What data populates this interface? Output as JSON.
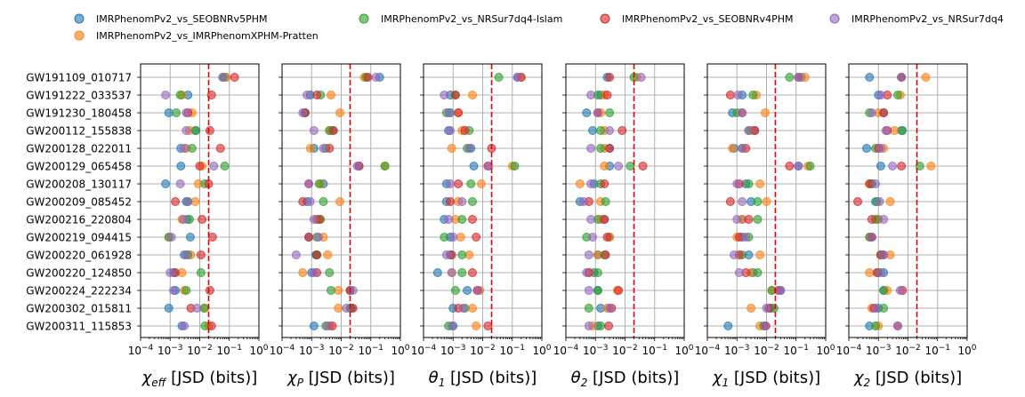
{
  "legend": {
    "placement": "top",
    "entries": [
      {
        "name": "IMRPhenomPv2_vs_SEOBNRv5PHM",
        "color": "#1f77b4"
      },
      {
        "name": "IMRPhenomPv2_vs_IMRPhenomXPHM-Pratten",
        "color": "#ff7f0e"
      },
      {
        "name": "IMRPhenomPv2_vs_NRSur7dq4-Islam",
        "color": "#2ca02c"
      },
      {
        "name": "IMRPhenomPv2_vs_SEOBNRv4PHM",
        "color": "#d62728"
      },
      {
        "name": "IMRPhenomPv2_vs_NRSur7dq4",
        "color": "#9467bd"
      }
    ]
  },
  "chart_data": {
    "type": "scatter",
    "x_scale": "log",
    "xlim": [
      0.0001,
      1
    ],
    "x_tick_labels": [
      "10^-4",
      "10^-3",
      "10^-2",
      "10^-1",
      "10^0"
    ],
    "threshold_line": 0.02,
    "threshold_color": "#e60000",
    "grid": true,
    "categories": [
      "GW191109_010717",
      "GW191222_033537",
      "GW191230_180458",
      "GW200112_155838",
      "GW200128_022011",
      "GW200129_065458",
      "GW200208_130117",
      "GW200209_085452",
      "GW200216_220804",
      "GW200219_094415",
      "GW200220_061928",
      "GW200220_124850",
      "GW200224_222234",
      "GW200302_015811",
      "GW200311_115853"
    ],
    "panels": [
      {
        "xlabel": "χ_eff [JSD (bits)]",
        "xlabel_main": "χ",
        "xlabel_sub": "eff",
        "xlabel_rest": " [JSD (bits)]",
        "series": [
          {
            "name": "IMRPhenomPv2_vs_SEOBNRv5PHM",
            "values": [
              0.07,
              0.004,
              0.0009,
              0.007,
              0.0023,
              0.0023,
              0.0007,
              0.0035,
              0.0038,
              0.0048,
              0.003,
              0.0013,
              0.0015,
              0.0009,
              0.0025
            ]
          },
          {
            "name": "IMRPhenomPv2_vs_IMRPhenomXPHM-Pratten",
            "values": [
              0.08,
              0.0025,
              0.0055,
              0.0045,
              0.0035,
              0.012,
              0.009,
              0.007,
              0.0025,
              0.0009,
              0.005,
              0.0025,
              0.003,
              0.015,
              0.02
            ]
          },
          {
            "name": "IMRPhenomPv2_vs_NRSur7dq4-Islam",
            "values": [
              0.06,
              0.0022,
              0.0016,
              0.0075,
              0.0055,
              0.07,
              0.015,
              0.004,
              0.0045,
              0.0009,
              0.004,
              0.011,
              0.0035,
              0.014,
              0.015
            ]
          },
          {
            "name": "IMRPhenomPv2_vs_SEOBNRv4PHM",
            "values": [
              0.15,
              0.025,
              0.004,
              0.022,
              0.05,
              0.01,
              0.02,
              0.0015,
              0.012,
              0.027,
              0.011,
              0.0015,
              0.022,
              0.005,
              0.025
            ]
          },
          {
            "name": "IMRPhenomPv2_vs_NRSur7dq4",
            "values": [
              0.06,
              0.0007,
              0.0035,
              0.0035,
              0.003,
              0.03,
              0.0022,
              0.004,
              0.0028,
              0.0011,
              0.0035,
              0.001,
              0.0013,
              0.008,
              0.003
            ]
          }
        ]
      },
      {
        "xlabel": "χ_P [JSD (bits)]",
        "xlabel_main": "χ",
        "xlabel_sub": "P",
        "xlabel_rest": " [JSD (bits)]",
        "series": [
          {
            "name": "IMRPhenomPv2_vs_SEOBNRv5PHM",
            "values": [
              0.2,
              0.0009,
              0.0006,
              0.005,
              0.0012,
              0.04,
              0.0025,
              0.0007,
              0.0015,
              0.0008,
              0.0014,
              0.001,
              0.02,
              0.022,
              0.0012
            ]
          },
          {
            "name": "IMRPhenomPv2_vs_IMRPhenomXPHM-Pratten",
            "values": [
              0.06,
              0.0045,
              0.009,
              0.004,
              0.0009,
              0.3,
              0.002,
              0.009,
              0.0015,
              0.0025,
              0.0035,
              0.0005,
              0.008,
              0.008,
              0.004
            ]
          },
          {
            "name": "IMRPhenomPv2_vs_NRSur7dq4-Islam",
            "values": [
              0.07,
              0.002,
              0.0006,
              0.004,
              0.003,
              0.3,
              0.0018,
              0.0025,
              0.002,
              0.0015,
              0.0015,
              0.004,
              0.0045,
              0.02,
              0.003
            ]
          },
          {
            "name": "IMRPhenomPv2_vs_SEOBNRv4PHM",
            "values": [
              0.08,
              0.0015,
              0.0006,
              0.0055,
              0.004,
              0.04,
              0.0008,
              0.0005,
              0.0018,
              0.0008,
              0.0015,
              0.0015,
              0.02,
              0.025,
              0.005
            ]
          },
          {
            "name": "IMRPhenomPv2_vs_NRSur7dq4",
            "values": [
              0.15,
              0.0007,
              0.0005,
              0.0012,
              0.0025,
              0.035,
              0.0008,
              0.0009,
              0.0012,
              0.0017,
              0.0003,
              0.0012,
              0.025,
              0.015,
              0.0035
            ]
          }
        ]
      },
      {
        "xlabel": "θ_1 [JSD (bits)]",
        "xlabel_main": "θ",
        "xlabel_sub": "1",
        "xlabel_rest": " [JSD (bits)]",
        "series": [
          {
            "name": "IMRPhenomPv2_vs_SEOBNRv5PHM",
            "values": [
              0.15,
              0.0008,
              0.0008,
              0.0007,
              0.004,
              0.005,
              0.0006,
              0.0006,
              0.0005,
              0.0008,
              0.0008,
              0.0003,
              0.003,
              0.001,
              0.001
            ]
          },
          {
            "name": "IMRPhenomPv2_vs_IMRPhenomXPHM-Pratten",
            "values": [
              0.2,
              0.0045,
              0.0015,
              0.002,
              0.0009,
              0.1,
              0.009,
              0.0015,
              0.0012,
              0.0018,
              0.0035,
              0.0009,
              0.008,
              0.0045,
              0.006
            ]
          },
          {
            "name": "IMRPhenomPv2_vs_NRSur7dq4-Islam",
            "values": [
              0.035,
              0.0012,
              0.0006,
              0.0035,
              0.003,
              0.12,
              0.004,
              0.0045,
              0.002,
              0.0005,
              0.002,
              0.002,
              0.0012,
              0.0025,
              0.0007
            ]
          },
          {
            "name": "IMRPhenomPv2_vs_SEOBNRv4PHM",
            "values": [
              0.2,
              0.0012,
              0.0015,
              0.0025,
              0.02,
              0.015,
              0.0015,
              0.0008,
              0.0045,
              0.006,
              0.0009,
              0.0045,
              0.0065,
              0.0015,
              0.015
            ]
          },
          {
            "name": "IMRPhenomPv2_vs_NRSur7dq4",
            "values": [
              0.15,
              0.0005,
              0.0007,
              0.0008,
              0.0035,
              0.016,
              0.0008,
              0.002,
              0.0007,
              0.001,
              0.0006,
              0.0009,
              0.007,
              0.0022,
              0.0009
            ]
          }
        ]
      },
      {
        "xlabel": "θ_2 [JSD (bits)]",
        "xlabel_main": "θ",
        "xlabel_sub": "2",
        "xlabel_rest": " [JSD (bits)]",
        "series": [
          {
            "name": "IMRPhenomPv2_vs_SEOBNRv5PHM",
            "values": [
              0.0025,
              0.0015,
              0.0005,
              0.0008,
              0.003,
              0.003,
              0.0009,
              0.0003,
              0.002,
              0.003,
              0.0012,
              0.0009,
              0.0012,
              0.0015,
              0.0012
            ]
          },
          {
            "name": "IMRPhenomPv2_vs_IMRPhenomXPHM-Pratten",
            "values": [
              0.025,
              0.002,
              0.0015,
              0.002,
              0.002,
              0.002,
              0.0003,
              0.0015,
              0.0015,
              0.003,
              0.0012,
              0.0006,
              0.0055,
              0.0025,
              0.0008
            ]
          },
          {
            "name": "IMRPhenomPv2_vs_NRSur7dq4-Islam",
            "values": [
              0.02,
              0.0012,
              0.003,
              0.0015,
              0.0015,
              0.015,
              0.0015,
              0.0022,
              0.0012,
              0.0005,
              0.002,
              0.0012,
              0.0012,
              0.0006,
              0.0015
            ]
          },
          {
            "name": "IMRPhenomPv2_vs_SEOBNRv4PHM",
            "values": [
              0.003,
              0.0025,
              0.0012,
              0.008,
              0.003,
              0.04,
              0.002,
              0.0006,
              0.002,
              0.0025,
              0.0022,
              0.0006,
              0.006,
              0.0035,
              0.0028
            ]
          },
          {
            "name": "IMRPhenomPv2_vs_NRSur7dq4",
            "values": [
              0.035,
              0.0007,
              0.0012,
              0.003,
              0.0007,
              0.006,
              0.0007,
              0.0004,
              0.0007,
              0.0008,
              0.0006,
              0.0005,
              0.0006,
              0.003,
              0.0006
            ]
          }
        ]
      },
      {
        "xlabel": "χ_1 [JSD (bits)]",
        "xlabel_main": "χ",
        "xlabel_sub": "1",
        "xlabel_rest": " [JSD (bits)]",
        "series": [
          {
            "name": "IMRPhenomPv2_vs_SEOBNRv5PHM",
            "values": [
              0.15,
              0.0015,
              0.0007,
              0.004,
              0.0008,
              0.12,
              0.002,
              0.003,
              0.0015,
              0.0015,
              0.0025,
              0.0035,
              0.03,
              0.014,
              0.0005
            ]
          },
          {
            "name": "IMRPhenomPv2_vs_IMRPhenomXPHM-Pratten",
            "values": [
              0.2,
              0.0045,
              0.009,
              0.003,
              0.0007,
              0.25,
              0.006,
              0.01,
              0.0015,
              0.001,
              0.006,
              0.003,
              0.015,
              0.003,
              0.006
            ]
          },
          {
            "name": "IMRPhenomPv2_vs_NRSur7dq4-Islam",
            "values": [
              0.06,
              0.0035,
              0.001,
              0.0025,
              0.0015,
              0.3,
              0.0025,
              0.005,
              0.005,
              0.0025,
              0.0015,
              0.005,
              0.015,
              0.018,
              0.008
            ]
          },
          {
            "name": "IMRPhenomPv2_vs_SEOBNRv4PHM",
            "values": [
              0.12,
              0.0006,
              0.0015,
              0.004,
              0.002,
              0.06,
              0.0012,
              0.0006,
              0.0025,
              0.0012,
              0.0012,
              0.002,
              0.025,
              0.012,
              0.0095
            ]
          },
          {
            "name": "IMRPhenomPv2_vs_NRSur7dq4",
            "values": [
              0.12,
              0.0011,
              0.0015,
              0.0025,
              0.0015,
              0.12,
              0.001,
              0.0015,
              0.001,
              0.002,
              0.0008,
              0.0012,
              0.03,
              0.01,
              0.009
            ]
          }
        ]
      },
      {
        "xlabel": "χ_2 [JSD (bits)]",
        "xlabel_main": "χ",
        "xlabel_sub": "2",
        "xlabel_rest": " [JSD (bits)]",
        "series": [
          {
            "name": "IMRPhenomPv2_vs_SEOBNRv5PHM",
            "values": [
              0.0005,
              0.001,
              0.0015,
              0.006,
              0.0004,
              0.0012,
              0.0006,
              0.0008,
              0.001,
              0.0006,
              0.0015,
              0.0015,
              0.0015,
              0.001,
              0.0005
            ]
          },
          {
            "name": "IMRPhenomPv2_vs_IMRPhenomXPHM-Pratten",
            "values": [
              0.04,
              0.0055,
              0.001,
              0.0035,
              0.0015,
              0.06,
              0.0005,
              0.0025,
              0.001,
              0.0005,
              0.0025,
              0.0005,
              0.002,
              0.0006,
              0.001
            ]
          },
          {
            "name": "IMRPhenomPv2_vs_NRSur7dq4-Islam",
            "values": [
              0.006,
              0.0045,
              0.0005,
              0.0065,
              0.0008,
              0.025,
              0.0006,
              0.0009,
              0.0008,
              0.0005,
              0.0012,
              0.001,
              0.0015,
              0.0015,
              0.0008
            ]
          },
          {
            "name": "IMRPhenomPv2_vs_SEOBNRv4PHM",
            "values": [
              0.006,
              0.002,
              0.0015,
              0.002,
              0.001,
              0.006,
              0.0005,
              0.0002,
              0.0006,
              0.0006,
              0.0012,
              0.0009,
              0.0065,
              0.0007,
              0.0045
            ]
          },
          {
            "name": "IMRPhenomPv2_vs_NRSur7dq4",
            "values": [
              0.006,
              0.0012,
              0.0006,
              0.0018,
              0.0012,
              0.003,
              0.0008,
              0.0011,
              0.0015,
              0.0006,
              0.0015,
              0.0012,
              0.0055,
              0.0008,
              0.0045
            ]
          }
        ]
      }
    ]
  }
}
